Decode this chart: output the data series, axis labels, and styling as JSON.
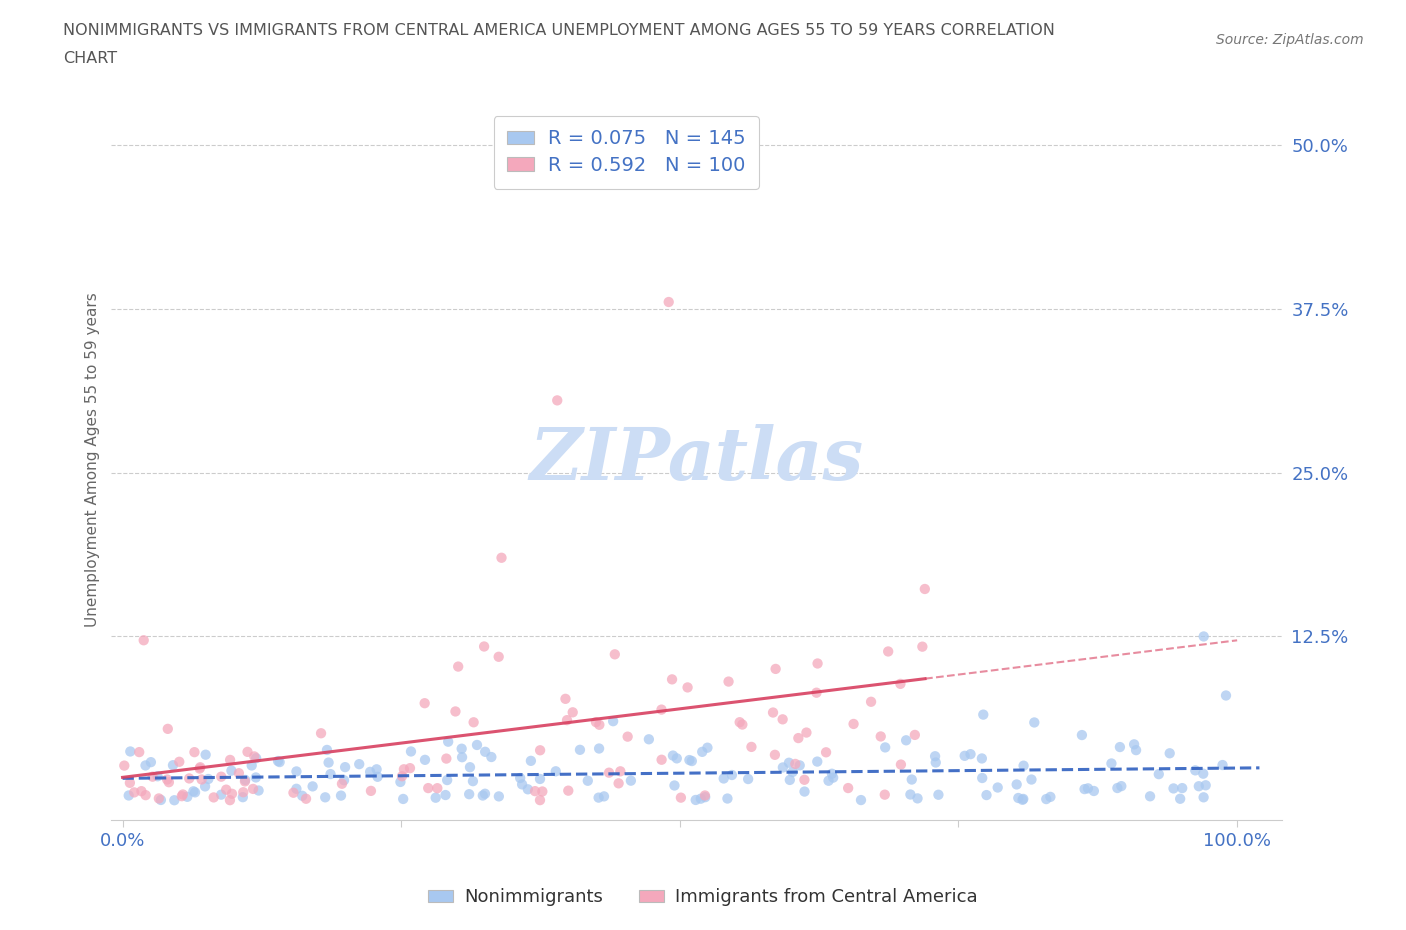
{
  "title_line1": "NONIMMIGRANTS VS IMMIGRANTS FROM CENTRAL AMERICA UNEMPLOYMENT AMONG AGES 55 TO 59 YEARS CORRELATION",
  "title_line2": "CHART",
  "source": "Source: ZipAtlas.com",
  "ylabel": "Unemployment Among Ages 55 to 59 years",
  "y_ticks": [
    0.0,
    0.125,
    0.25,
    0.375,
    0.5
  ],
  "y_tick_labels": [
    "",
    "12.5%",
    "25.0%",
    "37.5%",
    "50.0%"
  ],
  "blue_R": 0.075,
  "blue_N": 145,
  "pink_R": 0.592,
  "pink_N": 100,
  "blue_color": "#a8c8f0",
  "pink_color": "#f4a8bc",
  "blue_line_color": "#3060c0",
  "pink_line_color": "#d84060",
  "axis_tick_color": "#4472c4",
  "title_color": "#555555",
  "source_color": "#777777",
  "watermark": "ZIPatlas",
  "watermark_color": "#ccddf5",
  "background_color": "#ffffff",
  "grid_color": "#cccccc",
  "legend_text_color": "#4472c4",
  "bottom_legend_color": "#333333",
  "seed": 42
}
